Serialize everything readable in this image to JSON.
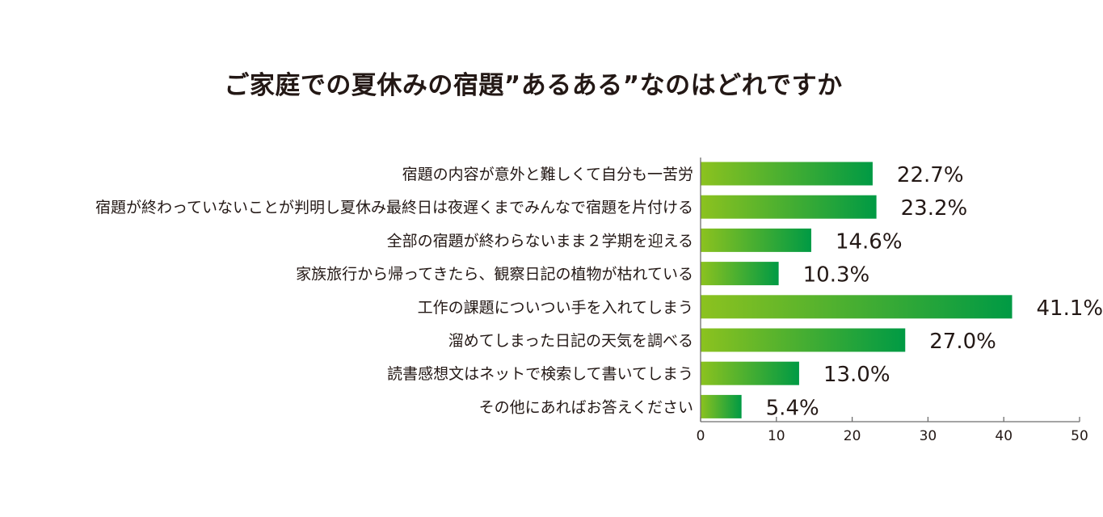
{
  "chart_data": {
    "type": "bar",
    "orientation": "horizontal",
    "title": "ご家庭での夏休みの宿題”あるある”なのはどれですか",
    "categories": [
      "宿題の内容が意外と難しくて自分も一苦労",
      "宿題が終わっていないことが判明し夏休み最終日は夜遅くまでみんなで宿題を片付ける",
      "全部の宿題が終わらないまま２学期を迎える",
      "家族旅行から帰ってきたら、観察日記の植物が枯れている",
      "工作の課題についつい手を入れてしまう",
      "溜めてしまった日記の天気を調べる",
      "読書感想文はネットで検索して書いてしまう",
      "その他にあればお答えください"
    ],
    "values": [
      22.7,
      23.2,
      14.6,
      10.3,
      41.1,
      27.0,
      13.0,
      5.4
    ],
    "value_labels": [
      "22.7%",
      "23.2%",
      "14.6%",
      "10.3%",
      "41.1%",
      "27.0%",
      "13.0%",
      "5.4%"
    ],
    "xlim": [
      0,
      50
    ],
    "x_ticks": [
      0,
      10,
      20,
      30,
      40,
      50
    ],
    "xlabel": "",
    "ylabel": "",
    "grid": false,
    "bar_gradient": [
      "#8cc21f",
      "#009a44"
    ]
  }
}
